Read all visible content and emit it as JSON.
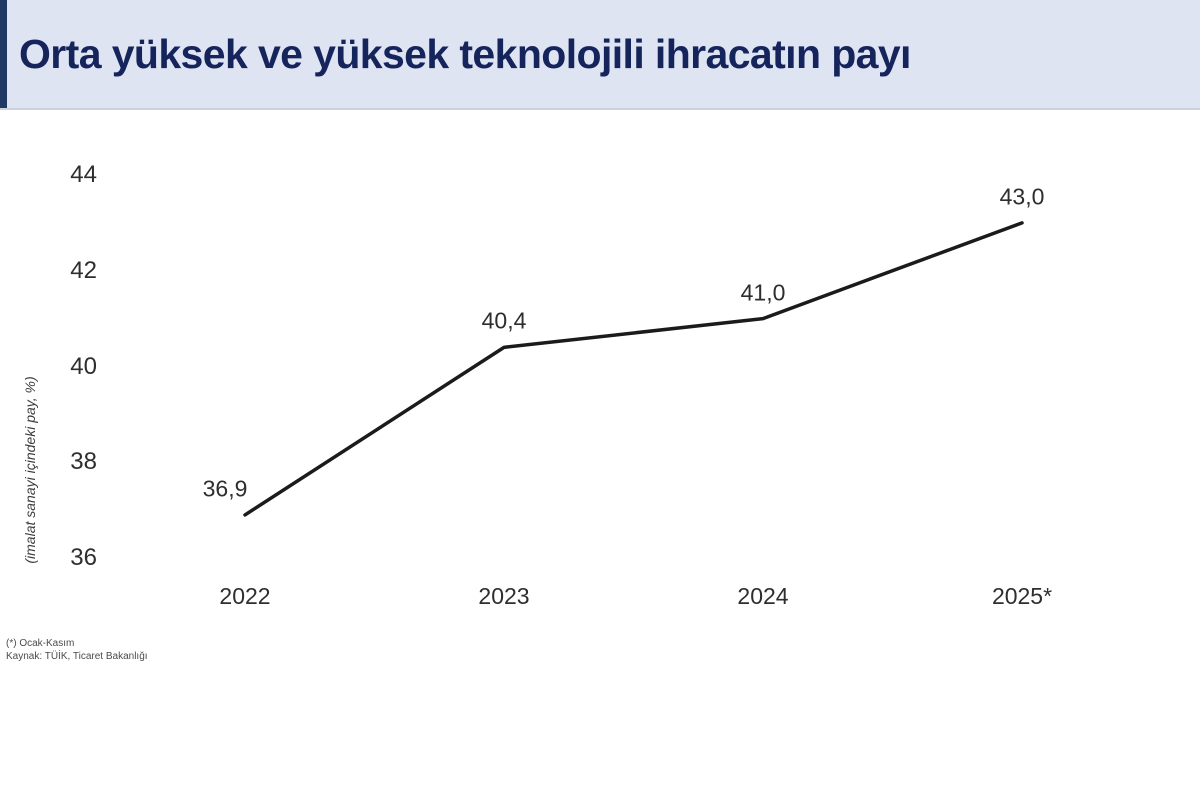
{
  "header": {
    "title": "Orta yüksek ve yüksek teknolojili ihracatın payı",
    "background_color": "#dfe4f3",
    "accent_color": "#1f3864",
    "title_color": "#16245c"
  },
  "chart_data": {
    "type": "line",
    "title": "Orta yüksek ve yüksek teknolojili ihracatın payı",
    "categories": [
      "2022",
      "2023",
      "2024",
      "2025*"
    ],
    "values": [
      36.9,
      40.4,
      41.0,
      43.0
    ],
    "value_labels": [
      "36,9",
      "40,4",
      "41,0",
      "43,0"
    ],
    "ylabel": "(imalat sanayi içindeki pay, %)",
    "yticks": [
      36,
      38,
      40,
      42,
      44
    ],
    "ylim": [
      36,
      44
    ],
    "grid": false,
    "legend": false,
    "line_color": "#1b1b1b",
    "label_color": "#2e2e2e"
  },
  "footnote": {
    "line1": "(*) Ocak-Kasım",
    "line2": "Kaynak: TÜİK, Ticaret Bakanlığı"
  }
}
